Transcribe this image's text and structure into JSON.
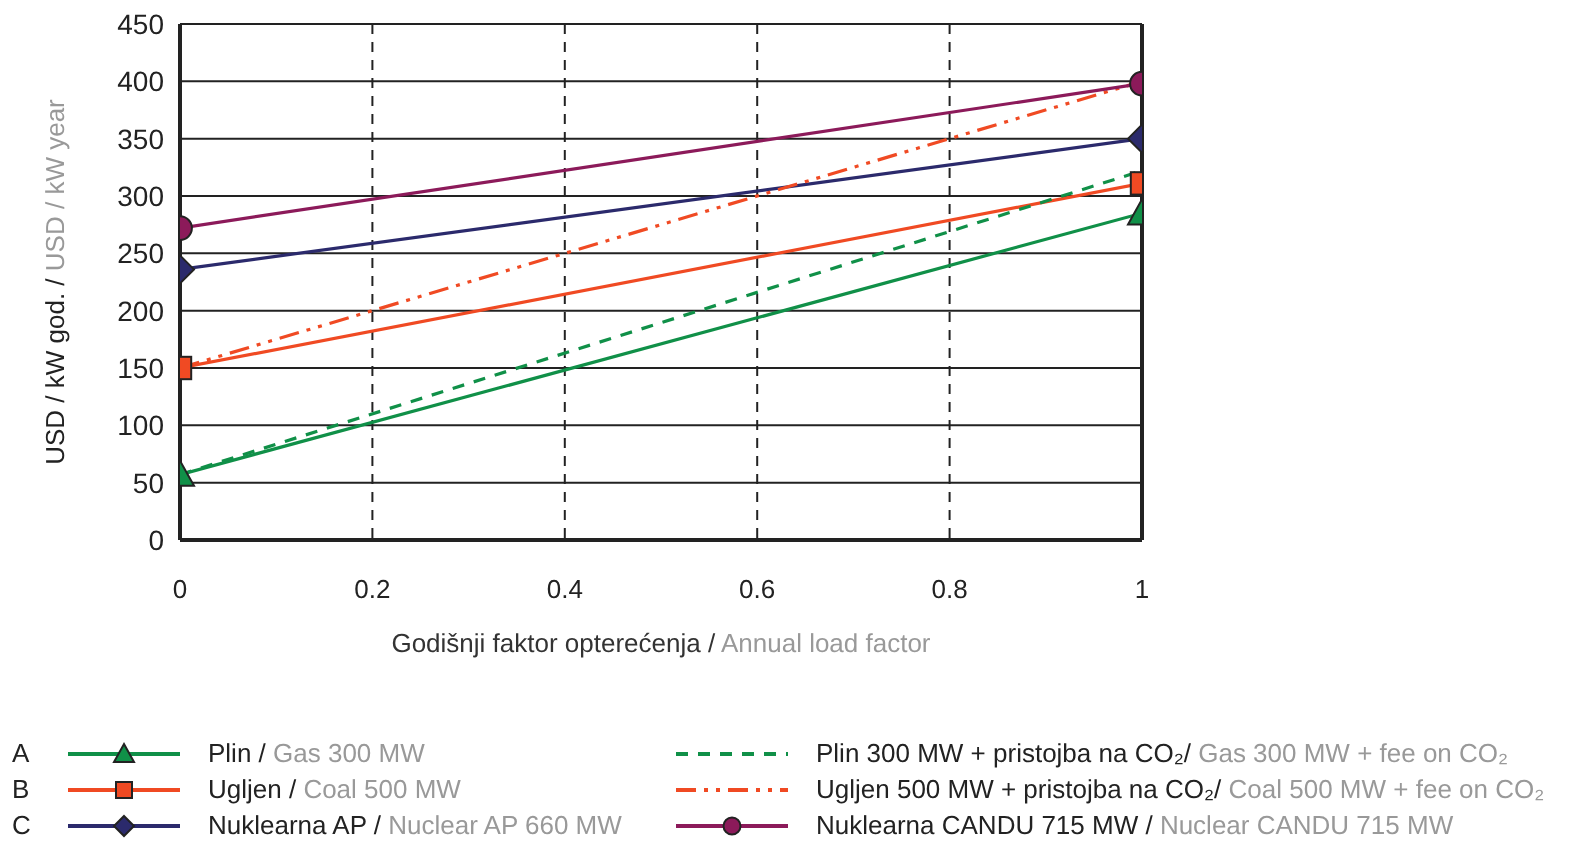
{
  "chart_data": {
    "type": "line",
    "xlabel": "Godišnji faktor opterećenja / Annual load factor",
    "ylabel": "USD / kW god. / USD / kW year",
    "x": [
      0,
      1
    ],
    "xlim": [
      0,
      1
    ],
    "xticks": [
      0,
      0.2,
      0.4,
      0.6,
      0.8,
      1
    ],
    "ylim": [
      0,
      450
    ],
    "yticks": [
      0,
      50,
      100,
      150,
      200,
      250,
      300,
      350,
      400,
      450
    ],
    "grid": true,
    "legend": "bottom",
    "annotations": [
      "A",
      "B",
      "C"
    ],
    "series": [
      {
        "name": "Plin / Gas 300 MW",
        "color": "#109048",
        "values": [
          57,
          285
        ],
        "marker": "triangle",
        "line_style": "solid"
      },
      {
        "name": "Ugljen / Coal 500 MW",
        "color": "#f04a23",
        "values": [
          150,
          311
        ],
        "marker": "square",
        "line_style": "solid"
      },
      {
        "name": "Nuklearna AP / Nuclear AP 660 MW",
        "color": "#2b2a6c",
        "values": [
          236,
          350
        ],
        "marker": "diamond",
        "line_style": "solid"
      },
      {
        "name": "Plin 300 MW + pristojba na CO₂/ Gas 300 MW + fee on CO₂",
        "color": "#109048",
        "values": [
          57,
          322
        ],
        "line_style": "dashed"
      },
      {
        "name": "Ugljen 500 MW + pristojba na CO₂/ Coal 500 MW + fee on CO₂",
        "color": "#f04a23",
        "values": [
          150,
          400
        ],
        "line_style": "dashdot"
      },
      {
        "name": "Nuklearna CANDU 715 MW / Nuclear CANDU 715 MW",
        "color": "#8c1a5a",
        "values": [
          272,
          398
        ],
        "marker": "circle",
        "line_style": "solid"
      }
    ]
  }
}
